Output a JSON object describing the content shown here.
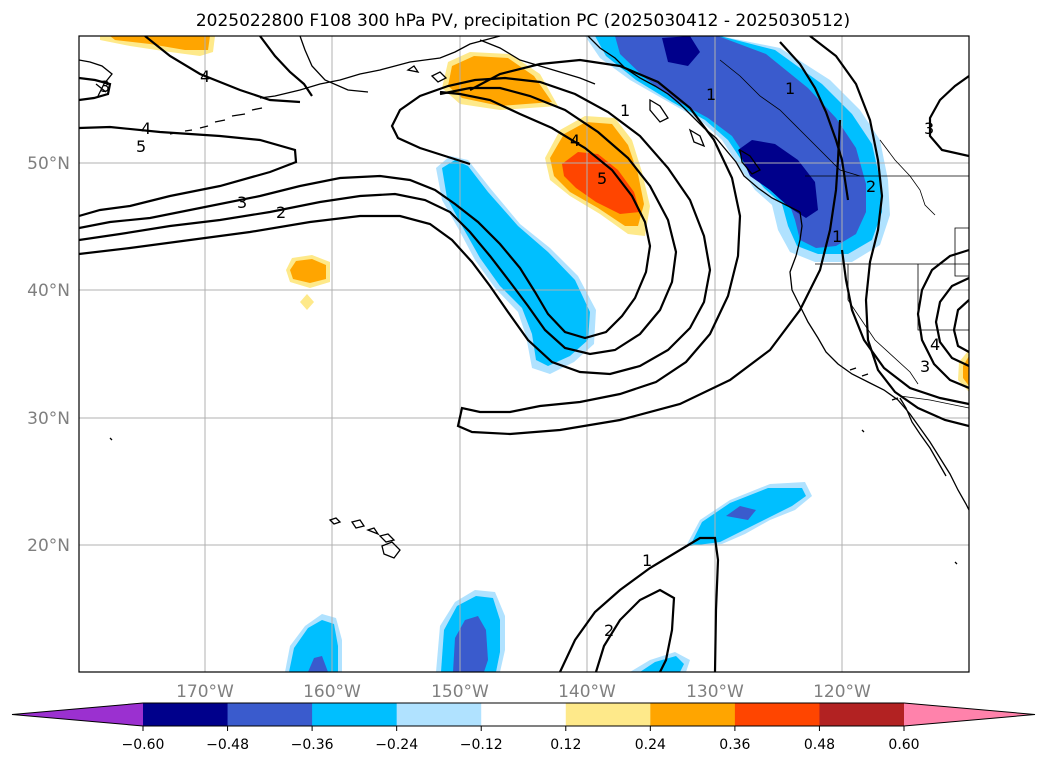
{
  "title": "2025022800 F108 300 hPa PV, precipitation PC (2025030412 - 2025030512)",
  "lat_labels": [
    "50°N",
    "40°N",
    "30°N",
    "20°N"
  ],
  "lon_labels": [
    "170°W",
    "160°W",
    "150°W",
    "140°W",
    "130°W",
    "120°W"
  ],
  "contour_labels": [
    "1",
    "1",
    "1",
    "1",
    "2",
    "2",
    "2",
    "3",
    "3",
    "3",
    "3",
    "4",
    "4",
    "4",
    "4",
    "5",
    "5",
    "3"
  ],
  "colorbar": {
    "ticks": [
      "−0.60",
      "−0.48",
      "−0.36",
      "−0.24",
      "−0.12",
      "0.12",
      "0.24",
      "0.36",
      "0.48",
      "0.60"
    ],
    "colors": [
      "#9b30d0",
      "#00008b",
      "#3a5bcd",
      "#00bfff",
      "#b0e2ff",
      "#ffffff",
      "#fee98a",
      "#ffa500",
      "#ff4500",
      "#b22222",
      "#ff82ab"
    ]
  },
  "palette": {
    "pos_light": "#fee98a",
    "pos_mid": "#ffa500",
    "pos_high": "#ff4500",
    "neg_light": "#b0e2ff",
    "neg_mid": "#00bfff",
    "neg_strong": "#3a5bcd",
    "neg_max": "#00008b"
  }
}
